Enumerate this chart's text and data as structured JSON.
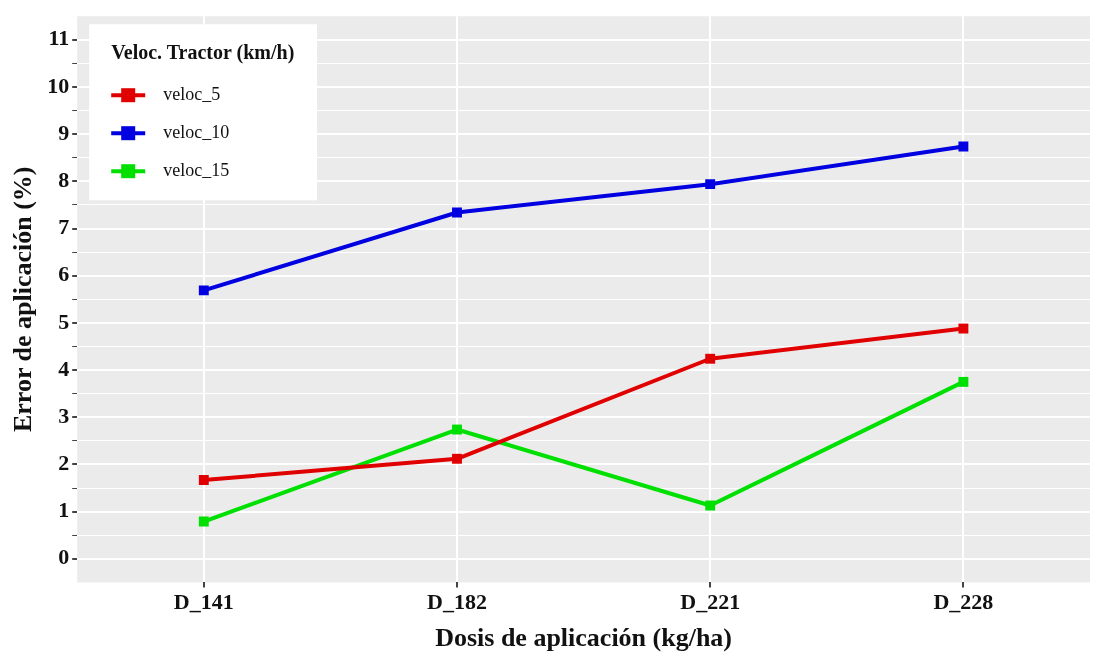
{
  "chart_data": {
    "type": "line",
    "xlabel": "Dosis de aplicación (kg/ha)",
    "ylabel": "Error de aplicación (%)",
    "legend_title": "Veloc. Tractor (km/h)",
    "categories": [
      "D_141",
      "D_182",
      "D_221",
      "D_228"
    ],
    "series": [
      {
        "name": "veloc_5",
        "color": "#e00000",
        "values": [
          1.67,
          2.12,
          4.24,
          4.88
        ]
      },
      {
        "name": "veloc_10",
        "color": "#0000e0",
        "values": [
          5.69,
          7.34,
          7.94,
          8.74
        ]
      },
      {
        "name": "veloc_15",
        "color": "#00e000",
        "values": [
          0.79,
          2.74,
          1.13,
          3.75
        ]
      }
    ],
    "ylim": [
      -0.5,
      11.5
    ],
    "yticks": [
      0,
      {
        "value": 0.5,
        "label": null
      },
      1,
      {
        "value": 1.5,
        "label": null
      },
      2,
      {
        "value": 2.5,
        "label": null
      },
      3,
      {
        "value": 3.5,
        "label": null
      },
      4,
      {
        "value": 4.5,
        "label": null
      },
      5,
      {
        "value": 5.5,
        "label": null
      },
      6,
      {
        "value": 6.5,
        "label": null
      },
      7,
      {
        "value": 7.5,
        "label": null
      },
      8,
      {
        "value": 8.5,
        "label": null
      },
      9,
      {
        "value": 9.5,
        "label": null
      },
      10,
      {
        "value": 10.5,
        "label": null
      },
      11
    ],
    "grid": true,
    "legend": "top left",
    "marker": "square",
    "line_style": "solid"
  }
}
